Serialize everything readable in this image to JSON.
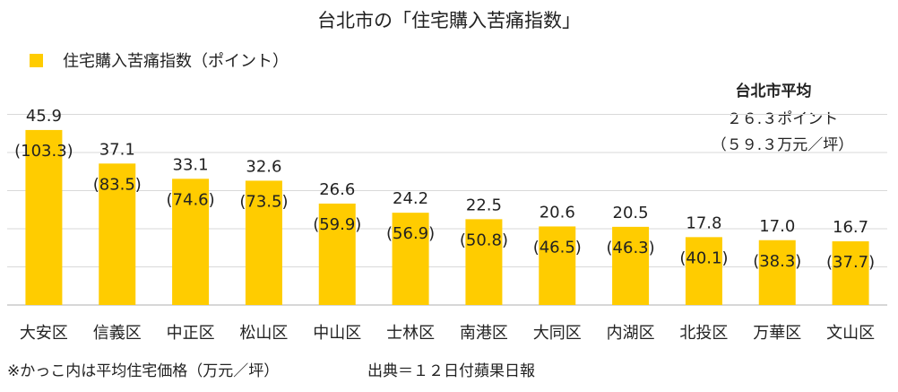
{
  "chart_data": {
    "type": "bar",
    "title": "台北市の「住宅購入苦痛指数」",
    "legend": {
      "label": "住宅購入苦痛指数（ポイント）",
      "position": "top-left"
    },
    "categories": [
      "大安区",
      "信義区",
      "中正区",
      "松山区",
      "中山区",
      "士林区",
      "南港区",
      "大同区",
      "内湖区",
      "北投区",
      "万華区",
      "文山区"
    ],
    "series": [
      {
        "name": "住宅購入苦痛指数（ポイント）",
        "color": "#FFCC00",
        "values": [
          45.9,
          37.1,
          33.1,
          32.6,
          26.6,
          24.2,
          22.5,
          20.6,
          20.5,
          17.8,
          17.0,
          16.7
        ]
      }
    ],
    "value_labels": [
      "45.9",
      "37.1",
      "33.1",
      "32.6",
      "26.6",
      "24.2",
      "22.5",
      "20.6",
      "20.5",
      "17.8",
      "17.0",
      "16.7"
    ],
    "price_labels": [
      "(103.3)",
      "(83.5)",
      "(74.6)",
      "(73.5)",
      "(59.9)",
      "(56.9)",
      "(50.8)",
      "(46.5)",
      "(46.3)",
      "(40.1)",
      "(38.3)",
      "(37.7)"
    ],
    "ylim": [
      0,
      50
    ],
    "grid": true,
    "annotation": {
      "title": "台北市平均",
      "line1": "２６.３ポイント",
      "line2": "（５９.３万元／坪）"
    },
    "footnote_left": "※かっこ内は平均住宅価格（万元／坪）",
    "footnote_right": "出典＝１２日付蘋果日報"
  }
}
